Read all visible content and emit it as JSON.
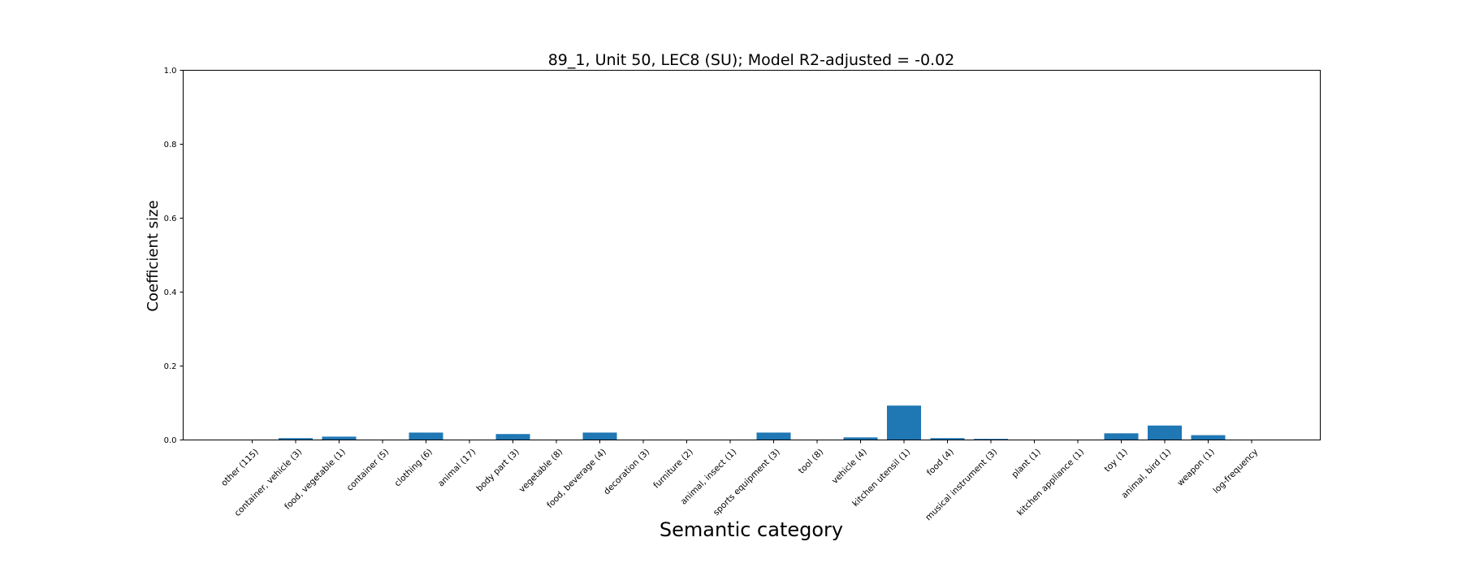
{
  "chart_data": {
    "type": "bar",
    "title": "89_1, Unit 50, LEC8 (SU); Model R2-adjusted = -0.02",
    "xlabel": "Semantic category",
    "ylabel": "Coefficient size",
    "ylim": [
      0,
      1.0
    ],
    "yticks": [
      "0.0",
      "0.2",
      "0.4",
      "0.6",
      "0.8",
      "1.0"
    ],
    "grid": false,
    "bar_color": "#1f77b4",
    "categories": [
      "other (115)",
      "container, vehicle (3)",
      "food, vegetable (1)",
      "container (5)",
      "clothing (6)",
      "animal (17)",
      "body part (3)",
      "vegetable (8)",
      "food, beverage (4)",
      "decoration (3)",
      "furniture (2)",
      "animal, insect (1)",
      "sports equipment (3)",
      "tool (8)",
      "vehicle (4)",
      "kitchen utensil (1)",
      "food (4)",
      "musical instrument (3)",
      "plant (1)",
      "kitchen appliance (1)",
      "toy (1)",
      "animal, bird (1)",
      "weapon (1)",
      "log-frequency"
    ],
    "values": [
      0.0,
      0.005,
      0.009,
      0.0,
      0.02,
      0.0,
      0.016,
      0.0,
      0.02,
      0.0,
      0.0,
      0.0,
      0.02,
      0.0,
      0.007,
      0.093,
      0.005,
      0.003,
      0.0,
      0.0,
      0.018,
      0.039,
      0.013,
      0.0
    ]
  }
}
